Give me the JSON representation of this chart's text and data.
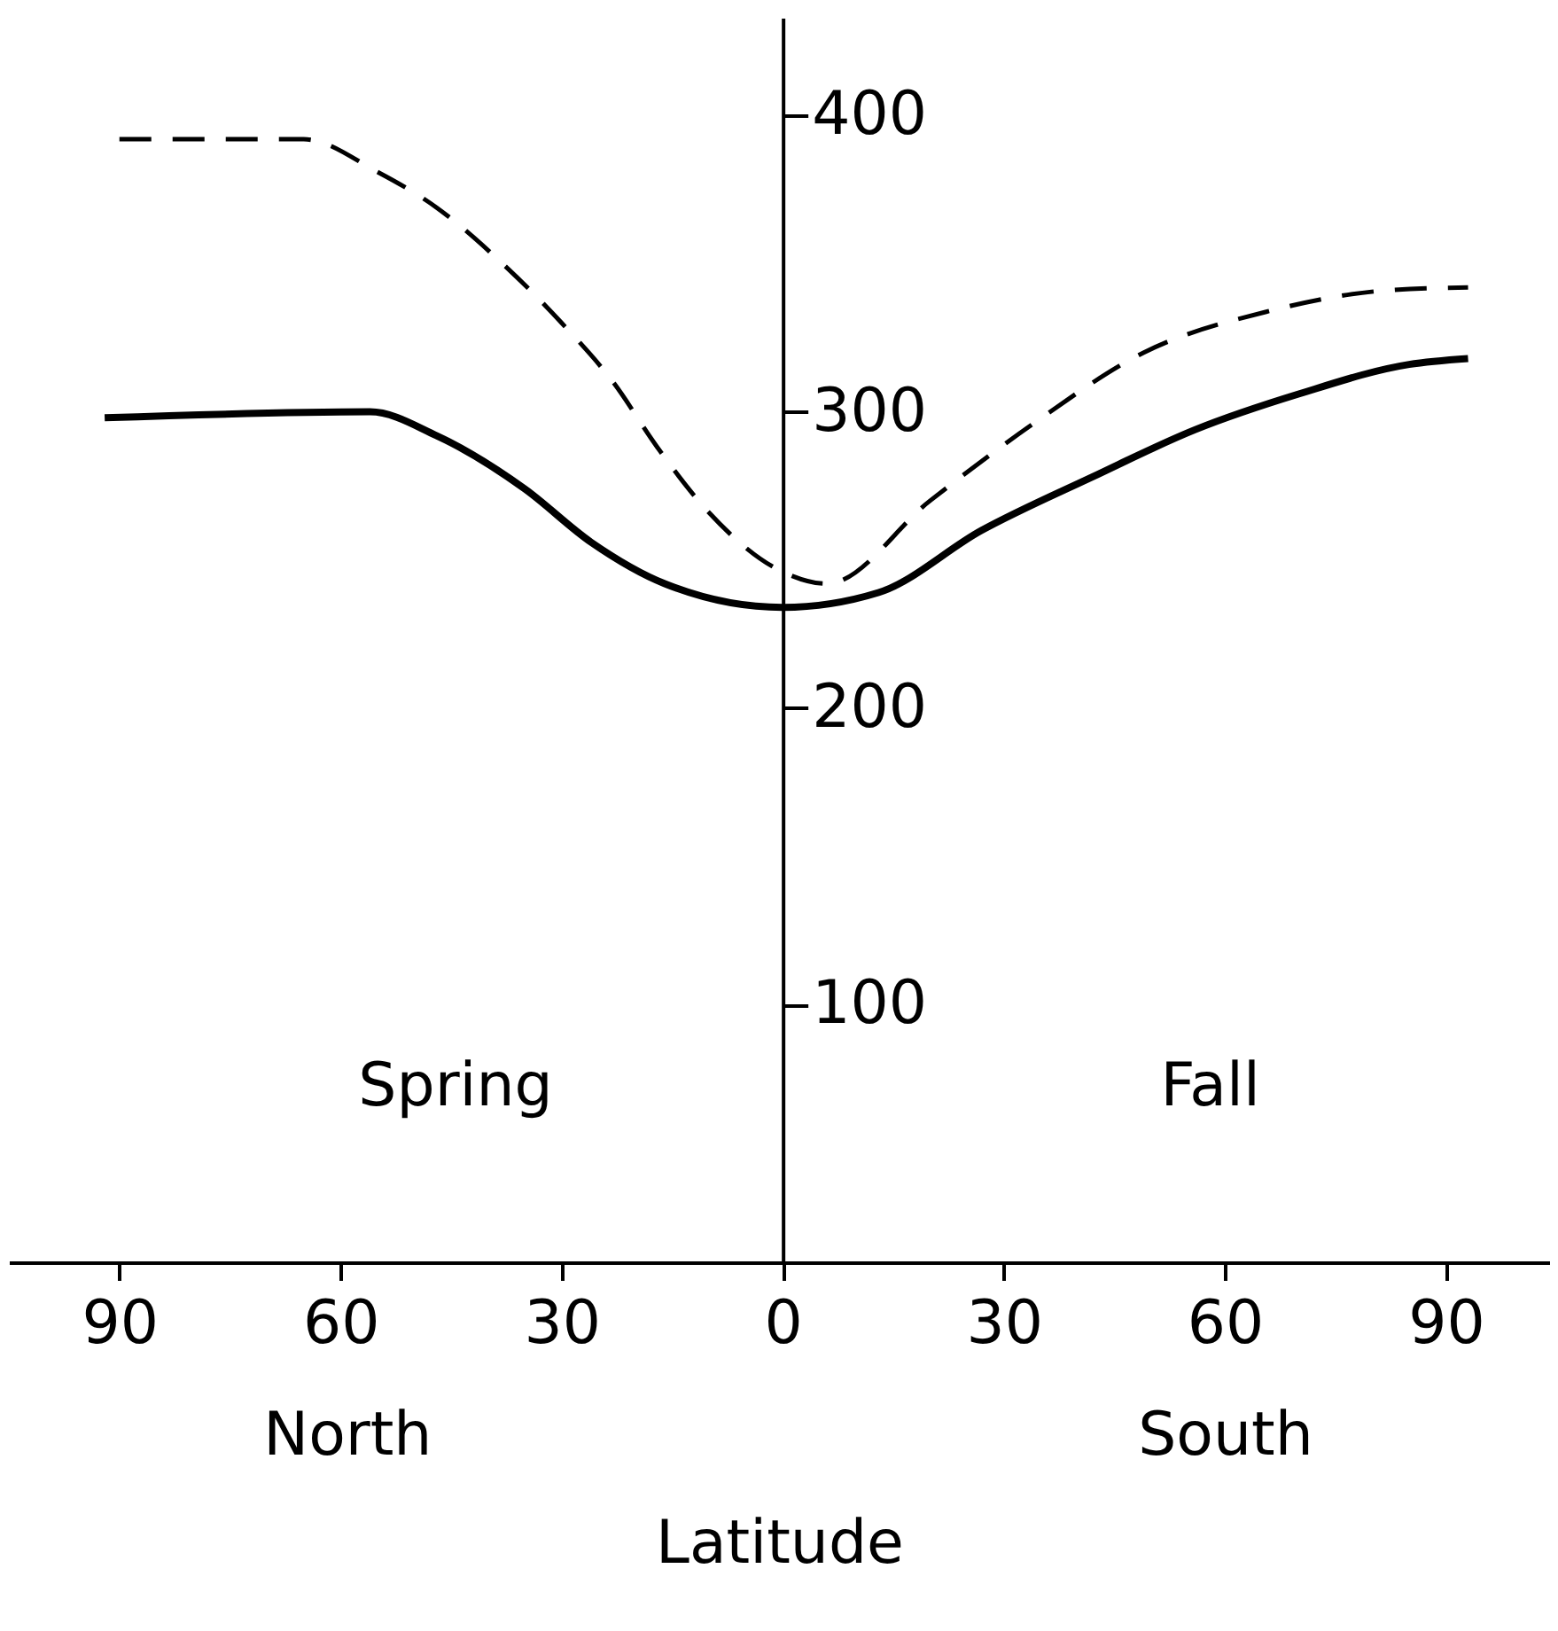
{
  "chart_data": {
    "type": "line",
    "xlabel": "Latitude",
    "annotations": [
      "Spring",
      "Fall",
      "North",
      "South"
    ],
    "xlim": [
      -105,
      104
    ],
    "ylim": [
      13,
      433
    ],
    "xticks": [
      {
        "value": -90,
        "label": "90"
      },
      {
        "value": -60,
        "label": "60"
      },
      {
        "value": -30,
        "label": "30"
      },
      0,
      30,
      60,
      90
    ],
    "yticks": [
      100,
      200,
      300,
      400
    ],
    "grid": false,
    "marker": "none",
    "series": [
      {
        "color": "#000000",
        "line_style": "dashed",
        "x": [
          -90,
          -65,
          -55,
          -47,
          -38,
          -30,
          -23,
          -17,
          -10,
          0,
          6,
          20,
          34,
          49,
          66,
          82,
          93
        ],
        "values": [
          392,
          392,
          381,
          369,
          350,
          330,
          310,
          288,
          266,
          246,
          242,
          270,
          296,
          320,
          334,
          341,
          342
        ]
      },
      {
        "color": "#000000",
        "line_style": "solid",
        "x": [
          -92,
          -56,
          -47,
          -35,
          -26,
          -16,
          0,
          13,
          27,
          42,
          56,
          70,
          85,
          93
        ],
        "values": [
          298,
          300,
          292,
          274,
          256,
          242,
          234,
          239,
          260,
          278,
          294,
          306,
          316,
          318
        ]
      }
    ]
  }
}
